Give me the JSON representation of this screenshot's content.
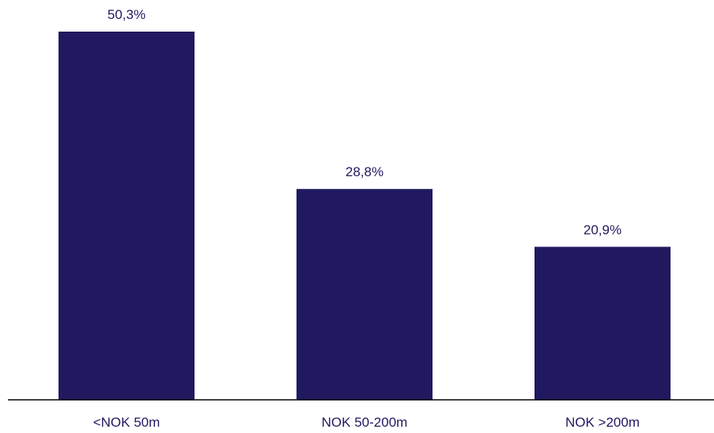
{
  "chart_data": {
    "type": "bar",
    "categories": [
      "<NOK 50m",
      "NOK 50-200m",
      "NOK >200m"
    ],
    "values": [
      50.3,
      28.8,
      20.9
    ],
    "value_labels": [
      "50,3%",
      "28,8%",
      "20,9%"
    ],
    "title": "",
    "xlabel": "",
    "ylabel": "",
    "grid": false,
    "bar_color": "#201960",
    "axis_color": "#000000",
    "label_color": "#201960"
  }
}
